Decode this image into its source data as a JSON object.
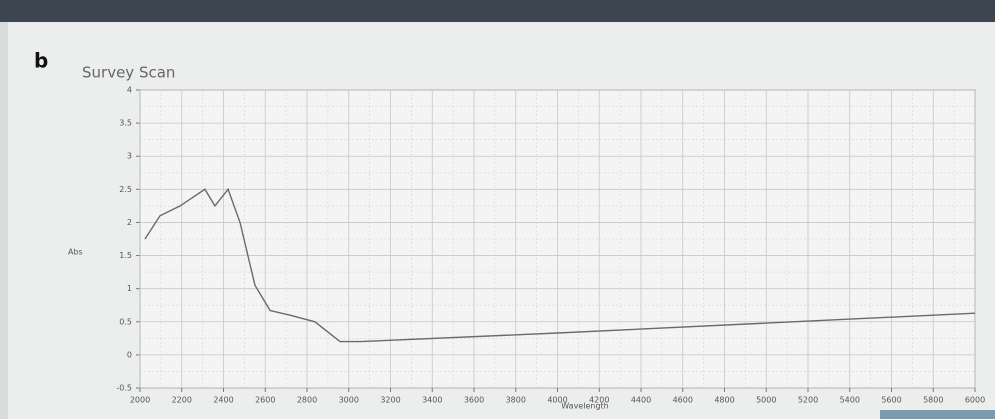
{
  "panel_label": "b",
  "chart_data": {
    "type": "line",
    "title": "Survey Scan",
    "xlabel": "Wavelength",
    "ylabel": "Abs",
    "x": [
      2024,
      2096,
      2192,
      2311,
      2359,
      2422,
      2479,
      2551,
      2623,
      2719,
      2838,
      2958,
      3054,
      4000,
      5000,
      6000
    ],
    "series": [
      {
        "color": "#6a6a6a",
        "values": [
          1.75,
          2.1,
          2.25,
          2.5,
          2.25,
          2.5,
          2.0,
          1.05,
          0.67,
          0.6,
          0.5,
          0.2,
          0.2,
          0.33,
          0.48,
          0.63
        ]
      }
    ],
    "xlim": [
      2000,
      6000
    ],
    "ylim": [
      -0.5,
      4
    ],
    "xticks": [
      2000,
      2200,
      2400,
      2600,
      2800,
      3000,
      3200,
      3400,
      3600,
      3800,
      4000,
      4200,
      4400,
      4600,
      4800,
      5000,
      5200,
      5400,
      5600,
      5800,
      6000
    ],
    "yticks": [
      -0.5,
      0,
      0.5,
      1,
      1.5,
      2,
      2.5,
      3,
      3.5,
      4
    ],
    "grid": true
  }
}
